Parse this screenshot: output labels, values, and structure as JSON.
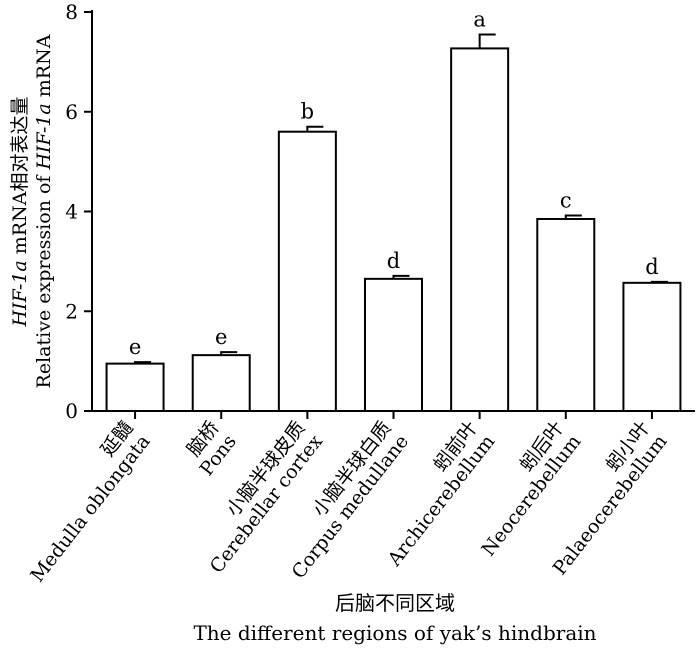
{
  "chart_data": {
    "type": "bar",
    "ylim": [
      0,
      8
    ],
    "yticks": [
      0,
      2,
      4,
      6,
      8
    ],
    "categories": [
      {
        "zh": "延髓",
        "en": "Medulla oblongata"
      },
      {
        "zh": "脑桥",
        "en": "Pons"
      },
      {
        "zh": "小脑半球皮质",
        "en": "Cerebellar cortex"
      },
      {
        "zh": "小脑半球白质",
        "en": "Corpus medullane"
      },
      {
        "zh": "蚓前叶",
        "en": "Archicerebellum"
      },
      {
        "zh": "蚓后叶",
        "en": "Neocerebellum"
      },
      {
        "zh": "蚓小叶",
        "en": "Palaeocerebellum"
      }
    ],
    "values": [
      0.95,
      1.12,
      5.6,
      2.65,
      7.27,
      3.85,
      2.57
    ],
    "errors": [
      0.03,
      0.06,
      0.1,
      0.06,
      0.28,
      0.07,
      0.02
    ],
    "letters": [
      "e",
      "e",
      "b",
      "d",
      "a",
      "c",
      "d"
    ],
    "ylabel": {
      "line1_parts": [
        {
          "text": "HIF-1a",
          "italic": true
        },
        {
          "text": " mRNA相对表达量",
          "italic": false
        }
      ],
      "line2_parts": [
        {
          "text": "Relative expression of ",
          "italic": false
        },
        {
          "text": "HIF-1a",
          "italic": true
        },
        {
          "text": " mRNA",
          "italic": false
        }
      ]
    },
    "xlabel": {
      "zh": "后脑不同区域",
      "en": "The different regions of yak’s hindbrain"
    }
  }
}
